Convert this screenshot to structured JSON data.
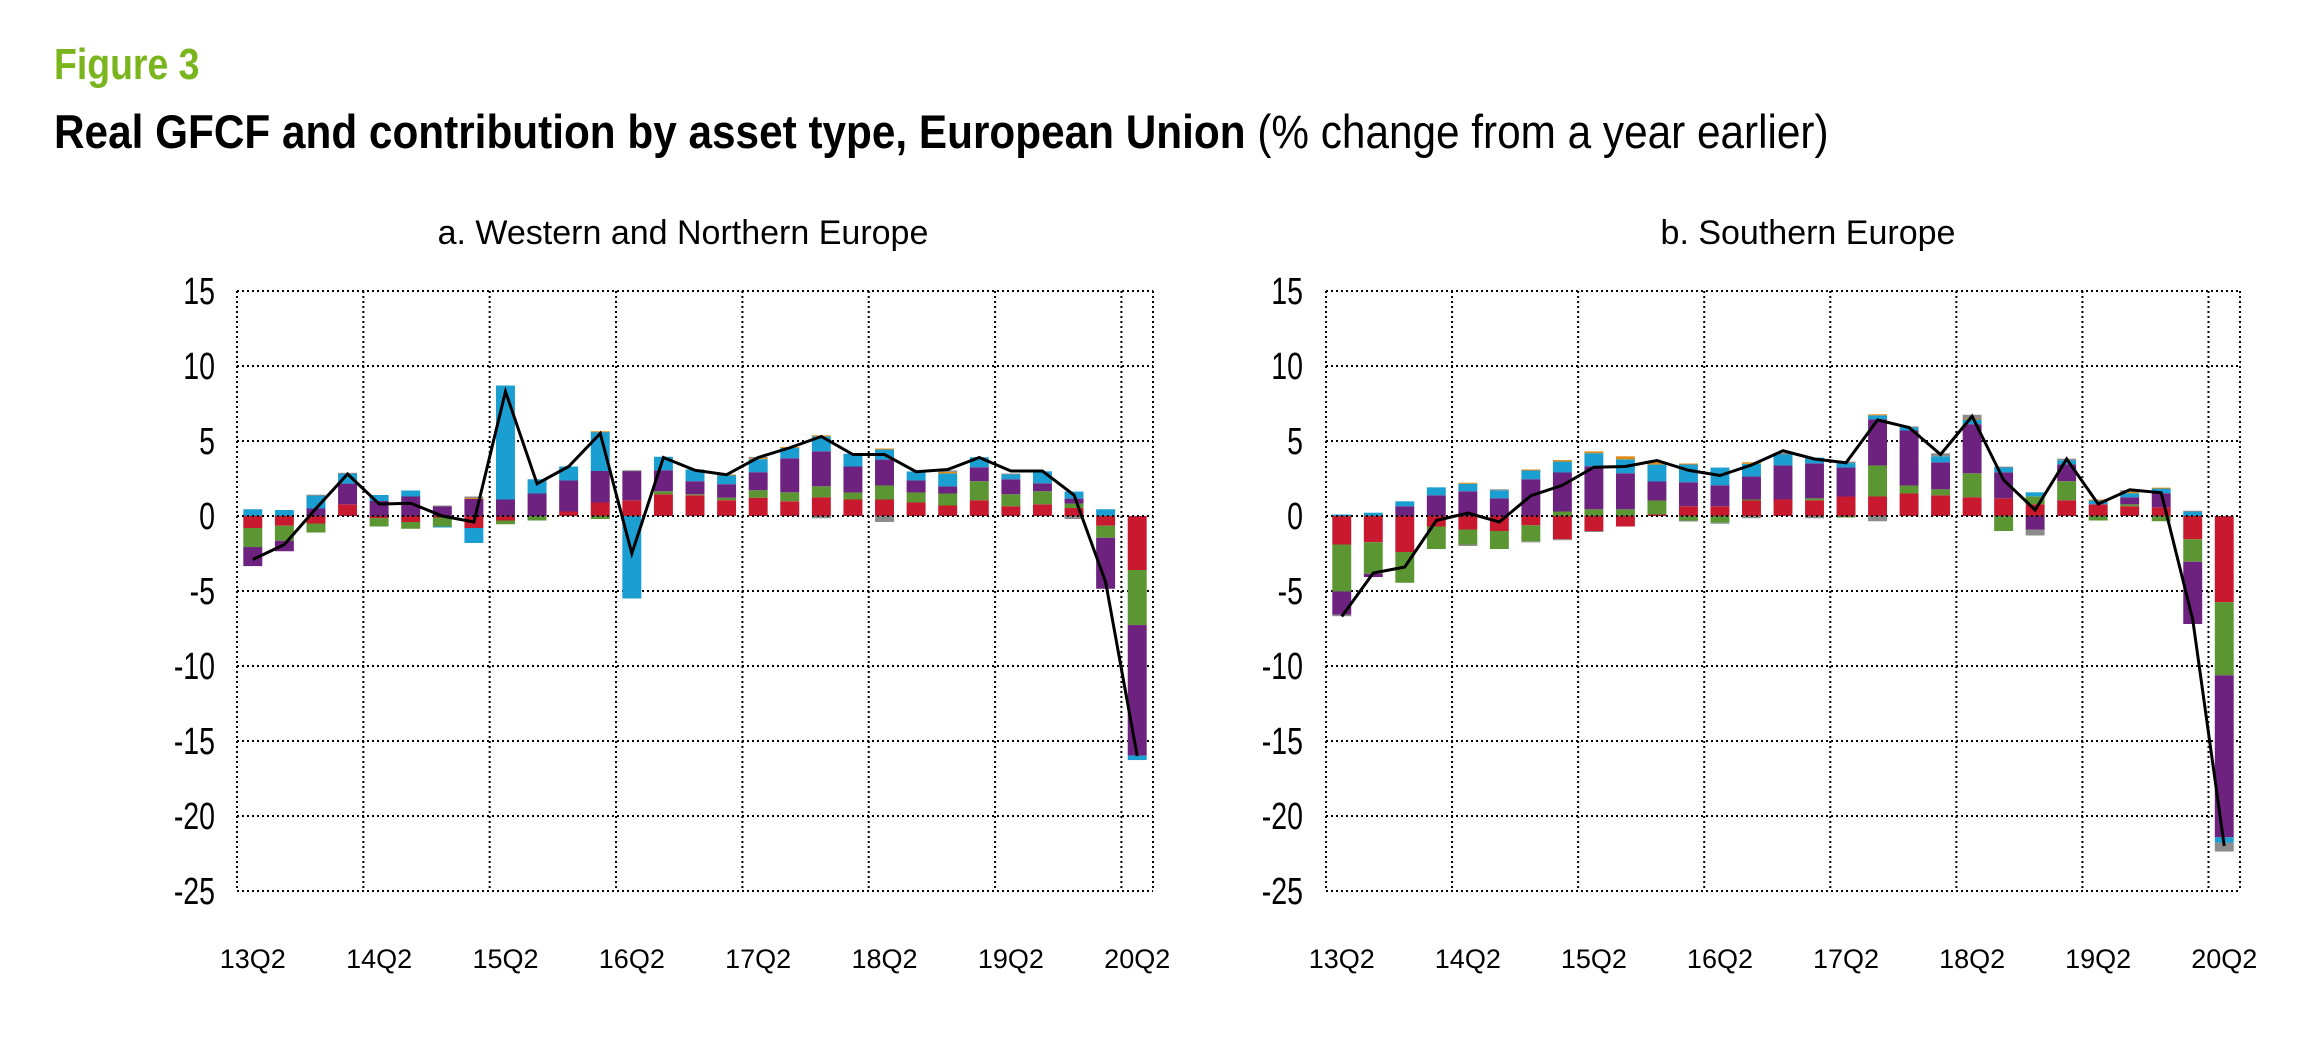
{
  "figure_label": "Figure 3",
  "title_bold": "Real GFCF and contribution by asset type, European Union",
  "title_rest": " (% change from a year earlier)",
  "colors": {
    "red": "#c8192e",
    "green": "#5b9632",
    "purple": "#6e2280",
    "cyan": "#1b9fd2",
    "orange": "#e08a16",
    "grey": "#8c8c8c",
    "line": "#000000",
    "title_green": "#7ab51d"
  },
  "chart_data": [
    {
      "type": "bar",
      "stacked": true,
      "title": "a. Western and Northern Europe",
      "ylim": [
        -25,
        15
      ],
      "yticks": [
        "15",
        "10",
        "5",
        "0",
        "-5",
        "-10",
        "-15",
        "-20",
        "-25"
      ],
      "ytick_values": [
        15,
        10,
        5,
        0,
        -5,
        -10,
        -15,
        -20,
        -25
      ],
      "xtick_labels": [
        "13Q2",
        "14Q2",
        "15Q2",
        "16Q2",
        "17Q2",
        "18Q2",
        "19Q2",
        "20Q2"
      ],
      "n_quarters": 29,
      "grid": true,
      "series": [
        {
          "color": "red",
          "values": [
            -0.8,
            -0.65,
            -0.5,
            0.78,
            -0.15,
            -0.4,
            -0.1,
            -0.8,
            -0.3,
            0,
            0.3,
            0.9,
            1.05,
            1.45,
            1.38,
            1.05,
            1.22,
            0.98,
            1.25,
            1.1,
            1.1,
            0.9,
            0.7,
            1.05,
            0.65,
            0.78,
            0.53,
            -0.65,
            -3.6
          ]
        },
        {
          "color": "green",
          "values": [
            -1.27,
            -1.0,
            -0.6,
            0,
            -0.55,
            -0.45,
            -0.6,
            0,
            -0.25,
            -0.3,
            0,
            -0.2,
            0,
            0.2,
            0.07,
            0.17,
            0.5,
            0.6,
            0.73,
            0.47,
            0.93,
            0.67,
            0.8,
            1.27,
            0.8,
            0.87,
            0.3,
            -0.8,
            -3.67
          ]
        },
        {
          "color": "purple",
          "values": [
            -1.27,
            -0.7,
            0.5,
            1.38,
            1.0,
            1.3,
            0.65,
            1.15,
            1.1,
            1.5,
            2.07,
            2.1,
            1.95,
            1.4,
            0.87,
            0.9,
            1.2,
            2.27,
            2.33,
            1.73,
            1.73,
            0.8,
            0.47,
            0.93,
            1.0,
            0.53,
            0.33,
            -3.4,
            -8.7
          ]
        },
        {
          "color": "cyan",
          "values": [
            0.45,
            0.4,
            0.87,
            0.67,
            0.4,
            0.4,
            -0.05,
            -1.0,
            7.6,
            0.95,
            0.93,
            2.6,
            -5.5,
            0.9,
            0.78,
            0.6,
            0.87,
            0.7,
            1.0,
            0.85,
            0.67,
            0.6,
            0.87,
            0.67,
            0.33,
            0.8,
            0.47,
            0.45,
            -0.3
          ]
        },
        {
          "color": "orange",
          "values": [
            0,
            0,
            0,
            0,
            0,
            0,
            0,
            0.05,
            0,
            0,
            0,
            0.05,
            0,
            0,
            0,
            0.05,
            0.07,
            0.05,
            0.07,
            0,
            0.07,
            0,
            0.1,
            0,
            0,
            0,
            0,
            0,
            0
          ]
        },
        {
          "color": "grey",
          "values": [
            0,
            0,
            0.05,
            0.05,
            0,
            0,
            0.05,
            0.1,
            0,
            0,
            0,
            0,
            0.05,
            0,
            0,
            0,
            0.08,
            0,
            -0.15,
            0,
            -0.4,
            0,
            0.1,
            0,
            0.05,
            0,
            -0.2,
            0,
            0
          ]
        }
      ],
      "total_line": [
        -2.9,
        -1.9,
        0.5,
        2.8,
        0.8,
        0.85,
        0,
        -0.4,
        8.3,
        2.15,
        3.3,
        5.5,
        -2.5,
        3.9,
        3.05,
        2.75,
        3.9,
        4.55,
        5.3,
        4.1,
        4.1,
        2.95,
        3.1,
        3.9,
        3.0,
        3.0,
        1.4,
        -4.4,
        -16.0
      ]
    },
    {
      "type": "bar",
      "stacked": true,
      "title": "b. Southern Europe",
      "ylim": [
        -25,
        15
      ],
      "yticks": [
        "15",
        "10",
        "5",
        "0",
        "-5",
        "-10",
        "-15",
        "-20",
        "-25"
      ],
      "ytick_values": [
        15,
        10,
        5,
        0,
        -5,
        -10,
        -15,
        -20,
        -25
      ],
      "xtick_labels": [
        "13Q2",
        "14Q2",
        "15Q2",
        "16Q2",
        "17Q2",
        "18Q2",
        "19Q2",
        "20Q2"
      ],
      "n_quarters": 29,
      "grid": true,
      "series": [
        {
          "color": "red",
          "values": [
            -1.9,
            -1.75,
            -2.4,
            -0.7,
            -0.9,
            -1.0,
            -0.62,
            -1.55,
            -1.0,
            -0.7,
            0.1,
            0.65,
            0.65,
            1.05,
            1.1,
            1.05,
            1.3,
            1.3,
            1.5,
            1.38,
            1.25,
            1.18,
            0.78,
            1.05,
            0.78,
            0.65,
            0.58,
            -1.55,
            -5.75
          ]
        },
        {
          "color": "green",
          "values": [
            -3.13,
            -2.1,
            -2.05,
            -1.5,
            -1.0,
            -1.2,
            -1.07,
            0.3,
            0.45,
            0.45,
            0.93,
            -0.3,
            -0.45,
            0.05,
            0,
            0.13,
            -0.1,
            2.07,
            0.53,
            0.4,
            1.6,
            -1.0,
            0.53,
            1.27,
            -0.3,
            0.13,
            -0.35,
            -1.5,
            -4.87
          ]
        },
        {
          "color": "purple",
          "values": [
            -1.55,
            -0.22,
            0.65,
            1.38,
            1.65,
            1.18,
            2.45,
            2.6,
            2.87,
            2.4,
            1.27,
            1.6,
            1.4,
            1.53,
            2.27,
            2.33,
            1.93,
            3.07,
            3.67,
            1.8,
            3.27,
            1.73,
            -0.9,
            1.13,
            0,
            0.47,
            0.93,
            -4.15,
            -10.8
          ]
        },
        {
          "color": "cyan",
          "values": [
            0.1,
            0.22,
            0.33,
            0.53,
            0.5,
            0.53,
            0.6,
            0.73,
            0.87,
            0.93,
            1.13,
            1.2,
            1.18,
            0.85,
            0.73,
            0.38,
            0.3,
            0.27,
            0.2,
            0.4,
            0.33,
            0.33,
            0.27,
            0.27,
            0.27,
            0.27,
            0.33,
            0.3,
            -0.35
          ]
        },
        {
          "color": "orange",
          "values": [
            0,
            0,
            0,
            0,
            0.07,
            0,
            0.05,
            0.1,
            0.12,
            0.2,
            0.15,
            0.05,
            0,
            0.1,
            0,
            0,
            0,
            0.07,
            0,
            0,
            0.05,
            0,
            0,
            0,
            0.05,
            0.1,
            0.05,
            0,
            0
          ]
        },
        {
          "color": "grey",
          "values": [
            -0.1,
            0,
            0,
            0,
            -0.1,
            0.07,
            -0.05,
            -0.05,
            -0.05,
            0,
            0,
            -0.05,
            -0.05,
            -0.15,
            0.1,
            -0.15,
            0.1,
            -0.35,
            0.07,
            0.2,
            0.25,
            0.05,
            -0.4,
            0.1,
            0,
            0.1,
            0,
            0.05,
            -0.6
          ]
        }
      ],
      "total_line": [
        -6.7,
        -3.8,
        -3.4,
        -0.3,
        0.2,
        -0.4,
        1.35,
        2.05,
        3.25,
        3.3,
        3.7,
        3.05,
        2.7,
        3.4,
        4.35,
        3.8,
        3.55,
        6.4,
        5.9,
        4.1,
        6.65,
        2.4,
        0.4,
        3.8,
        0.8,
        1.75,
        1.55,
        -6.9,
        -22.0
      ]
    }
  ]
}
